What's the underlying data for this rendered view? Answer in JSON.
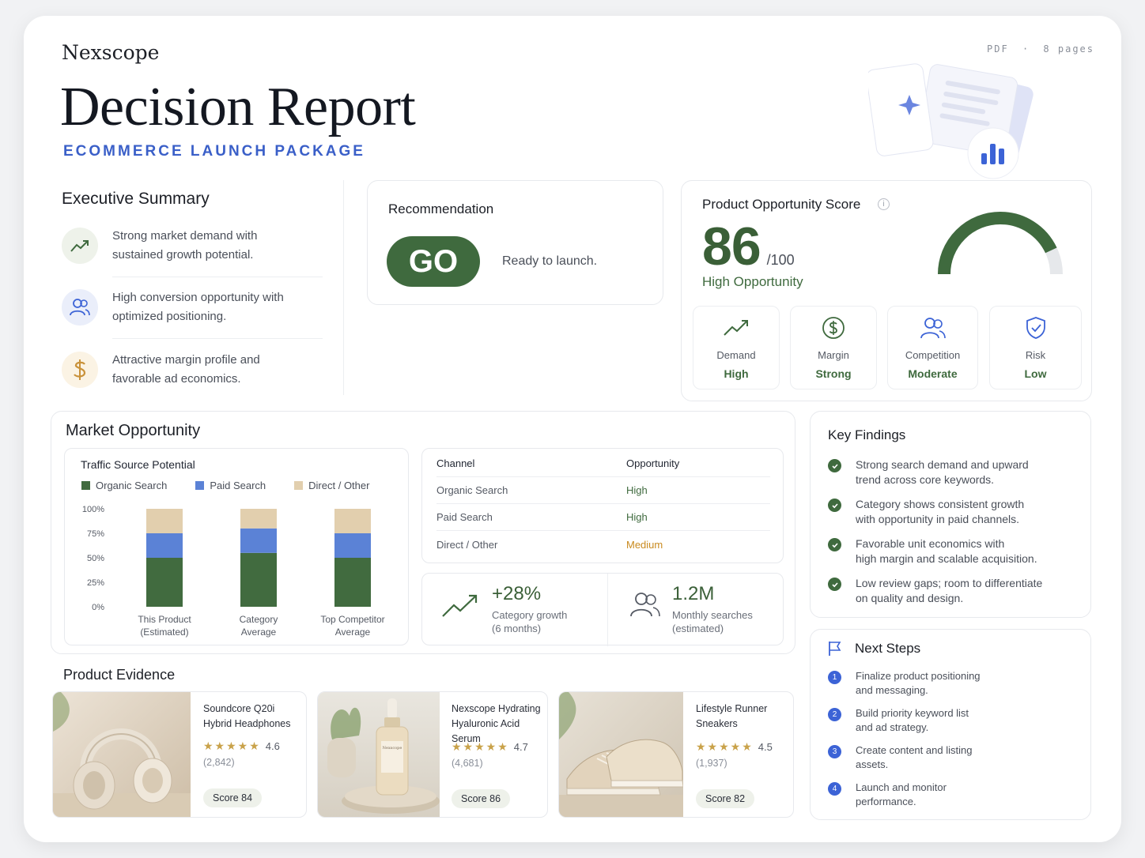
{
  "header": {
    "brand": "Nexscope",
    "title": "Decision Report",
    "subtitle": "ECOMMERCE LAUNCH PACKAGE",
    "format": "PDF",
    "separator": "·",
    "pages": "8 pages"
  },
  "executive_summary": {
    "title": "Executive Summary",
    "items": [
      {
        "icon": "trend-up-icon",
        "text_line1": "Strong market demand with",
        "text_line2": "sustained growth potential."
      },
      {
        "icon": "users-icon",
        "text_line1": "High conversion opportunity with",
        "text_line2": "optimized positioning."
      },
      {
        "icon": "dollar-icon",
        "text_line1": "Attractive margin profile and",
        "text_line2": "favorable ad economics."
      }
    ]
  },
  "recommendation": {
    "title": "Recommendation",
    "verdict": "GO",
    "note": "Ready to launch."
  },
  "opportunity_score": {
    "title": "Product Opportunity Score",
    "score": "86",
    "out_of": "/100",
    "level": "High Opportunity",
    "gauge_fraction": 0.86,
    "metrics": [
      {
        "icon": "trend-up-icon",
        "label": "Demand",
        "value": "High"
      },
      {
        "icon": "dollar-circle-icon",
        "label": "Margin",
        "value": "Strong"
      },
      {
        "icon": "users-icon",
        "label": "Competition",
        "value": "Moderate"
      },
      {
        "icon": "shield-check-icon",
        "label": "Risk",
        "value": "Low"
      }
    ]
  },
  "market_opportunity": {
    "title": "Market Opportunity",
    "chart_title": "Traffic Source Potential",
    "table": {
      "headers": [
        "Channel",
        "Opportunity"
      ],
      "rows": [
        {
          "channel": "Organic Search",
          "opportunity": "High"
        },
        {
          "channel": "Paid Search",
          "opportunity": "High"
        },
        {
          "channel": "Direct / Other",
          "opportunity": "Medium"
        }
      ]
    },
    "stats": [
      {
        "icon": "trend-up-icon",
        "value": "+28%",
        "label_line1": "Category growth",
        "label_line2": "(6 months)"
      },
      {
        "icon": "users-icon",
        "value": "1.2M",
        "label_line1": "Monthly searches",
        "label_line2": "(estimated)"
      }
    ]
  },
  "chart_data": {
    "type": "bar",
    "stacked": true,
    "title": "Traffic Source Potential",
    "categories": [
      [
        "This Product",
        "(Estimated)"
      ],
      [
        "Category",
        "Average"
      ],
      [
        "Top Competitor",
        "Average"
      ]
    ],
    "series": [
      {
        "name": "Organic Search",
        "color": "#416b3f",
        "values": [
          50,
          55,
          50
        ]
      },
      {
        "name": "Paid Search",
        "color": "#5b82d6",
        "values": [
          25,
          25,
          25
        ]
      },
      {
        "name": "Direct / Other",
        "color": "#e2cfae",
        "values": [
          25,
          20,
          25
        ]
      }
    ],
    "yticks": [
      "0%",
      "25%",
      "50%",
      "75%",
      "100%"
    ],
    "ylim": [
      0,
      100
    ],
    "legend": "top"
  },
  "key_findings": {
    "title": "Key Findings",
    "items": [
      {
        "line1": "Strong search demand and upward",
        "line2": "trend across core keywords."
      },
      {
        "line1": "Category shows consistent growth",
        "line2": "with opportunity in paid channels."
      },
      {
        "line1": "Favorable unit economics with",
        "line2": "high margin and scalable acquisition."
      },
      {
        "line1": "Low review gaps; room to differentiate",
        "line2": "on quality and design."
      }
    ]
  },
  "next_steps": {
    "title": "Next Steps",
    "items": [
      {
        "num": "1",
        "line1": "Finalize product positioning",
        "line2": "and messaging."
      },
      {
        "num": "2",
        "line1": "Build priority keyword list",
        "line2": "and ad strategy."
      },
      {
        "num": "3",
        "line1": "Create content and listing",
        "line2": "assets."
      },
      {
        "num": "4",
        "line1": "Launch and monitor",
        "line2": "performance."
      }
    ]
  },
  "product_evidence": {
    "title": "Product Evidence",
    "products": [
      {
        "name_line1": "Soundcore Q20i",
        "name_line2": "Hybrid Headphones",
        "stars": "★★★★★",
        "rating": "4.6",
        "reviews": "(2,842)",
        "score": "Score 84"
      },
      {
        "name_line1": "Nexscope Hydrating",
        "name_line2": "Hyaluronic Acid Serum",
        "stars": "★★★★★",
        "rating": "4.7",
        "reviews": "(4,681)",
        "score": "Score 86",
        "bottle_label": "Nexscope"
      },
      {
        "name_line1": "Lifestyle Runner",
        "name_line2": "Sneakers",
        "stars": "★★★★★",
        "rating": "4.5",
        "reviews": "(1,937)",
        "score": "Score 82"
      }
    ]
  }
}
